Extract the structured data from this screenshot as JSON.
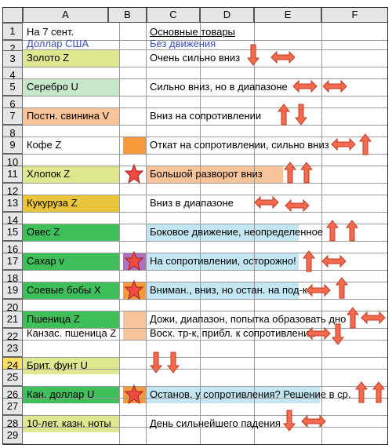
{
  "columns": [
    "A",
    "B",
    "C",
    "D",
    "E",
    "F"
  ],
  "rows": [
    "1",
    "2",
    "3",
    "4",
    "5",
    "6",
    "7",
    "8",
    "9",
    "10",
    "11",
    "12",
    "13",
    "14",
    "15",
    "16",
    "17",
    "18",
    "19",
    "20",
    "21",
    "22",
    "23",
    "24",
    "25",
    "26",
    "27",
    "28",
    "29"
  ],
  "cells": {
    "a1": "На 7 сент.",
    "c1": "Основные товары",
    "a2": "Доллар США",
    "c2": "Без движения",
    "a3": "Золото Z",
    "c3": "Очень сильно вниз",
    "a5": "Серебро U",
    "c5": "Сильно вниз, но в диапазоне",
    "a7": "Постн. свинина V",
    "c7": "Вниз на сопротивлении",
    "a9": "Кофе Z",
    "c9": "Откат на сопротивлении, сильно вниз",
    "a11": "Хлопок Z",
    "c11": "Большой разворот вниз",
    "a13": "Кукуруза Z",
    "c13": "Вниз в диапазоне",
    "a15": "Овес Z",
    "c15": "Боковое движение, неопределенное",
    "a17": "Сахар v",
    "c17": "На сопротивлении, осторожно!",
    "a19": "Соевые бобы X",
    "c19": "Вниман., вниз, но остан. на под-ке",
    "a21": "Пшеница Z",
    "c21": "Дожи, диапазон, попытка образовать дно",
    "a22": "Канзас. пшеница Z",
    "c22": "Восх. тр-к, прибл. к сопротивлению",
    "a24": "Брит. фунт U",
    "a26": "Кан. доллар U",
    "c26": "Останов. у сопротивления? Решение в ср.",
    "a28": "10-лет. казн. ноты",
    "c28": "День сильнейшего падения"
  },
  "colors": {
    "yellow_green": "#dfe78f",
    "light_green": "#c8e8cc",
    "peach": "#f9c49a",
    "orange": "#f59a3c",
    "green": "#3fbf5a",
    "light_blue": "#c3e6f3",
    "gold": "#e8c53a",
    "purple": "#b070c0",
    "arrow_red": "#f36b4e",
    "arrow_stroke": "#c03a22",
    "star_red": "#ef4b40"
  },
  "icons": {
    "arrow": "block-arrow-icon",
    "star": "star-icon"
  }
}
